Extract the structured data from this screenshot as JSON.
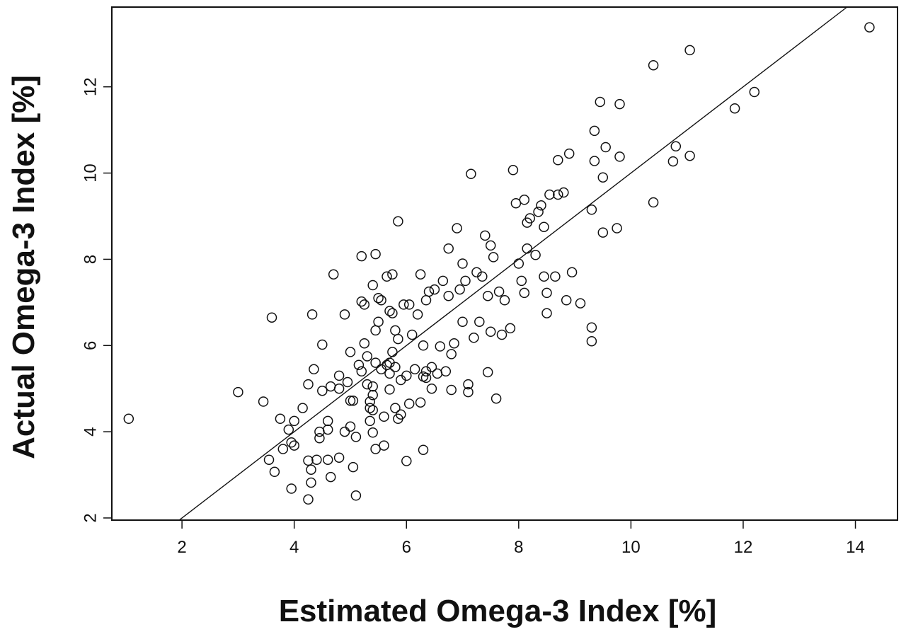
{
  "chart_data": {
    "type": "scatter",
    "title": "",
    "xlabel": "Estimated Omega-3 Index [%]",
    "ylabel": "Actual Omega-3 Index [%]",
    "xlim": [
      0.75,
      14.75
    ],
    "ylim": [
      1.95,
      13.85
    ],
    "x_ticks": [
      2,
      4,
      6,
      8,
      10,
      12,
      14
    ],
    "y_ticks": [
      2,
      4,
      6,
      8,
      10,
      12
    ],
    "grid": false,
    "marker": "open-circle",
    "marker_color": "#111111",
    "regression_line": {
      "slope": 1.0,
      "intercept": 0.0
    },
    "points": [
      [
        1.05,
        4.3
      ],
      [
        3.0,
        4.92
      ],
      [
        3.45,
        4.7
      ],
      [
        3.55,
        3.35
      ],
      [
        3.6,
        6.65
      ],
      [
        3.65,
        3.07
      ],
      [
        3.75,
        4.3
      ],
      [
        3.8,
        3.6
      ],
      [
        3.9,
        4.05
      ],
      [
        3.95,
        3.75
      ],
      [
        3.95,
        2.68
      ],
      [
        4.0,
        3.68
      ],
      [
        4.0,
        4.25
      ],
      [
        4.15,
        4.55
      ],
      [
        4.25,
        2.43
      ],
      [
        4.25,
        3.33
      ],
      [
        4.25,
        5.1
      ],
      [
        4.3,
        2.82
      ],
      [
        4.3,
        3.12
      ],
      [
        4.32,
        6.72
      ],
      [
        4.35,
        5.45
      ],
      [
        4.4,
        3.35
      ],
      [
        4.45,
        3.85
      ],
      [
        4.45,
        4.0
      ],
      [
        4.5,
        6.02
      ],
      [
        4.5,
        4.95
      ],
      [
        4.6,
        3.35
      ],
      [
        4.6,
        4.25
      ],
      [
        4.6,
        4.05
      ],
      [
        4.65,
        2.95
      ],
      [
        4.65,
        5.05
      ],
      [
        4.7,
        7.65
      ],
      [
        4.8,
        5.0
      ],
      [
        4.8,
        5.3
      ],
      [
        4.8,
        3.4
      ],
      [
        4.9,
        4.0
      ],
      [
        4.9,
        6.72
      ],
      [
        4.95,
        5.15
      ],
      [
        5.0,
        4.12
      ],
      [
        5.0,
        4.72
      ],
      [
        5.0,
        5.85
      ],
      [
        5.05,
        4.72
      ],
      [
        5.05,
        3.18
      ],
      [
        5.1,
        2.52
      ],
      [
        5.1,
        3.88
      ],
      [
        5.15,
        5.55
      ],
      [
        5.2,
        5.4
      ],
      [
        5.2,
        8.07
      ],
      [
        5.2,
        7.02
      ],
      [
        5.25,
        6.95
      ],
      [
        5.25,
        6.05
      ],
      [
        5.3,
        5.75
      ],
      [
        5.3,
        5.1
      ],
      [
        5.35,
        4.55
      ],
      [
        5.35,
        4.25
      ],
      [
        5.35,
        4.7
      ],
      [
        5.4,
        7.4
      ],
      [
        5.4,
        5.05
      ],
      [
        5.4,
        4.85
      ],
      [
        5.4,
        4.5
      ],
      [
        5.4,
        3.98
      ],
      [
        5.45,
        3.6
      ],
      [
        5.45,
        8.12
      ],
      [
        5.45,
        5.6
      ],
      [
        5.45,
        6.35
      ],
      [
        5.5,
        6.55
      ],
      [
        5.5,
        7.1
      ],
      [
        5.55,
        5.45
      ],
      [
        5.55,
        7.05
      ],
      [
        5.6,
        3.68
      ],
      [
        5.6,
        4.35
      ],
      [
        5.65,
        7.6
      ],
      [
        5.65,
        5.55
      ],
      [
        5.7,
        5.35
      ],
      [
        5.7,
        5.6
      ],
      [
        5.7,
        6.8
      ],
      [
        5.7,
        4.98
      ],
      [
        5.75,
        6.75
      ],
      [
        5.75,
        5.85
      ],
      [
        5.75,
        7.65
      ],
      [
        5.8,
        6.35
      ],
      [
        5.8,
        5.5
      ],
      [
        5.8,
        4.55
      ],
      [
        5.85,
        8.88
      ],
      [
        5.85,
        4.3
      ],
      [
        5.85,
        6.15
      ],
      [
        5.9,
        5.2
      ],
      [
        5.9,
        4.4
      ],
      [
        5.95,
        6.95
      ],
      [
        6.0,
        3.32
      ],
      [
        6.0,
        5.3
      ],
      [
        6.05,
        6.95
      ],
      [
        6.05,
        4.65
      ],
      [
        6.1,
        6.25
      ],
      [
        6.15,
        5.45
      ],
      [
        6.2,
        6.72
      ],
      [
        6.25,
        4.68
      ],
      [
        6.25,
        7.65
      ],
      [
        6.3,
        3.58
      ],
      [
        6.3,
        5.28
      ],
      [
        6.3,
        6.0
      ],
      [
        6.35,
        5.4
      ],
      [
        6.35,
        5.25
      ],
      [
        6.35,
        7.05
      ],
      [
        6.4,
        7.25
      ],
      [
        6.45,
        5.0
      ],
      [
        6.45,
        5.5
      ],
      [
        6.5,
        7.3
      ],
      [
        6.55,
        5.35
      ],
      [
        6.6,
        5.98
      ],
      [
        6.65,
        7.5
      ],
      [
        6.7,
        5.4
      ],
      [
        6.75,
        8.25
      ],
      [
        6.75,
        7.15
      ],
      [
        6.8,
        5.8
      ],
      [
        6.8,
        4.97
      ],
      [
        6.85,
        6.05
      ],
      [
        6.9,
        8.72
      ],
      [
        6.95,
        7.3
      ],
      [
        7.0,
        6.55
      ],
      [
        7.0,
        7.9
      ],
      [
        7.05,
        7.5
      ],
      [
        7.1,
        4.92
      ],
      [
        7.1,
        5.1
      ],
      [
        7.15,
        9.98
      ],
      [
        7.2,
        6.18
      ],
      [
        7.25,
        7.7
      ],
      [
        7.3,
        6.55
      ],
      [
        7.35,
        7.6
      ],
      [
        7.4,
        8.55
      ],
      [
        7.45,
        7.15
      ],
      [
        7.45,
        5.38
      ],
      [
        7.5,
        6.32
      ],
      [
        7.5,
        8.32
      ],
      [
        7.55,
        8.05
      ],
      [
        7.6,
        4.77
      ],
      [
        7.65,
        7.25
      ],
      [
        7.7,
        6.25
      ],
      [
        7.75,
        7.05
      ],
      [
        7.85,
        6.4
      ],
      [
        7.9,
        10.07
      ],
      [
        7.95,
        9.3
      ],
      [
        8.0,
        7.9
      ],
      [
        8.05,
        7.5
      ],
      [
        8.1,
        7.22
      ],
      [
        8.1,
        9.38
      ],
      [
        8.15,
        8.85
      ],
      [
        8.15,
        8.25
      ],
      [
        8.2,
        8.95
      ],
      [
        8.3,
        8.1
      ],
      [
        8.35,
        9.1
      ],
      [
        8.4,
        9.25
      ],
      [
        8.45,
        7.6
      ],
      [
        8.45,
        8.75
      ],
      [
        8.5,
        6.75
      ],
      [
        8.5,
        7.22
      ],
      [
        8.55,
        9.5
      ],
      [
        8.65,
        7.6
      ],
      [
        8.7,
        9.5
      ],
      [
        8.7,
        10.3
      ],
      [
        8.8,
        9.55
      ],
      [
        8.85,
        7.05
      ],
      [
        8.9,
        10.45
      ],
      [
        8.95,
        7.7
      ],
      [
        9.1,
        6.98
      ],
      [
        9.3,
        9.15
      ],
      [
        9.3,
        6.42
      ],
      [
        9.3,
        6.1
      ],
      [
        9.35,
        10.28
      ],
      [
        9.35,
        10.98
      ],
      [
        9.45,
        11.65
      ],
      [
        9.5,
        9.9
      ],
      [
        9.5,
        8.62
      ],
      [
        9.55,
        10.6
      ],
      [
        9.75,
        8.72
      ],
      [
        9.8,
        11.6
      ],
      [
        9.8,
        10.38
      ],
      [
        10.4,
        12.5
      ],
      [
        10.4,
        9.32
      ],
      [
        10.75,
        10.27
      ],
      [
        10.8,
        10.62
      ],
      [
        11.05,
        12.85
      ],
      [
        11.05,
        10.4
      ],
      [
        11.85,
        11.5
      ],
      [
        12.2,
        11.88
      ],
      [
        14.25,
        13.38
      ]
    ]
  }
}
